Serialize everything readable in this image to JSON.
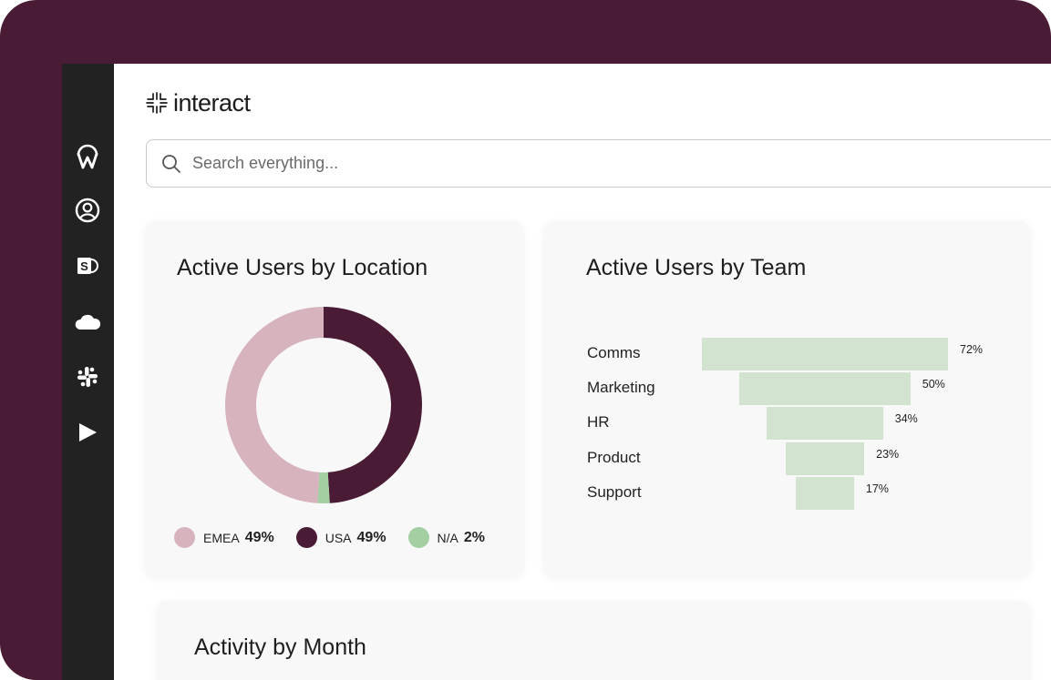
{
  "app": {
    "brand": "interact",
    "search_placeholder": "Search everything..."
  },
  "sidebar": {
    "items": [
      {
        "icon": "workvivo-icon"
      },
      {
        "icon": "user-profile-icon"
      },
      {
        "icon": "sharepoint-icon"
      },
      {
        "icon": "onedrive-cloud-icon"
      },
      {
        "icon": "slack-icon"
      },
      {
        "icon": "play-icon"
      }
    ]
  },
  "location_card": {
    "title": "Active Users by Location",
    "legend": [
      {
        "label": "EMEA",
        "value": "49%",
        "color": "#d7b4bd"
      },
      {
        "label": "USA",
        "value": "49%",
        "color": "#4a1b34"
      },
      {
        "label": "N/A",
        "value": "2%",
        "color": "#a3cfa2"
      }
    ]
  },
  "team_card": {
    "title": "Active Users by Team"
  },
  "activity_card": {
    "title": "Activity by Month"
  },
  "chart_data": [
    {
      "type": "pie",
      "title": "Active Users by Location",
      "donut": true,
      "categories": [
        "EMEA",
        "USA",
        "N/A"
      ],
      "values": [
        49,
        49,
        2
      ],
      "colors": [
        "#d7b4bd",
        "#4a1b34",
        "#a3cfa2"
      ],
      "legend_position": "bottom"
    },
    {
      "type": "bar",
      "orientation": "horizontal-funnel",
      "title": "Active Users by Team",
      "categories": [
        "Comms",
        "Marketing",
        "HR",
        "Product",
        "Support"
      ],
      "values": [
        72,
        50,
        34,
        23,
        17
      ],
      "value_labels": [
        "72%",
        "50%",
        "34%",
        "23%",
        "17%"
      ],
      "color": "#d2e4d0"
    }
  ]
}
